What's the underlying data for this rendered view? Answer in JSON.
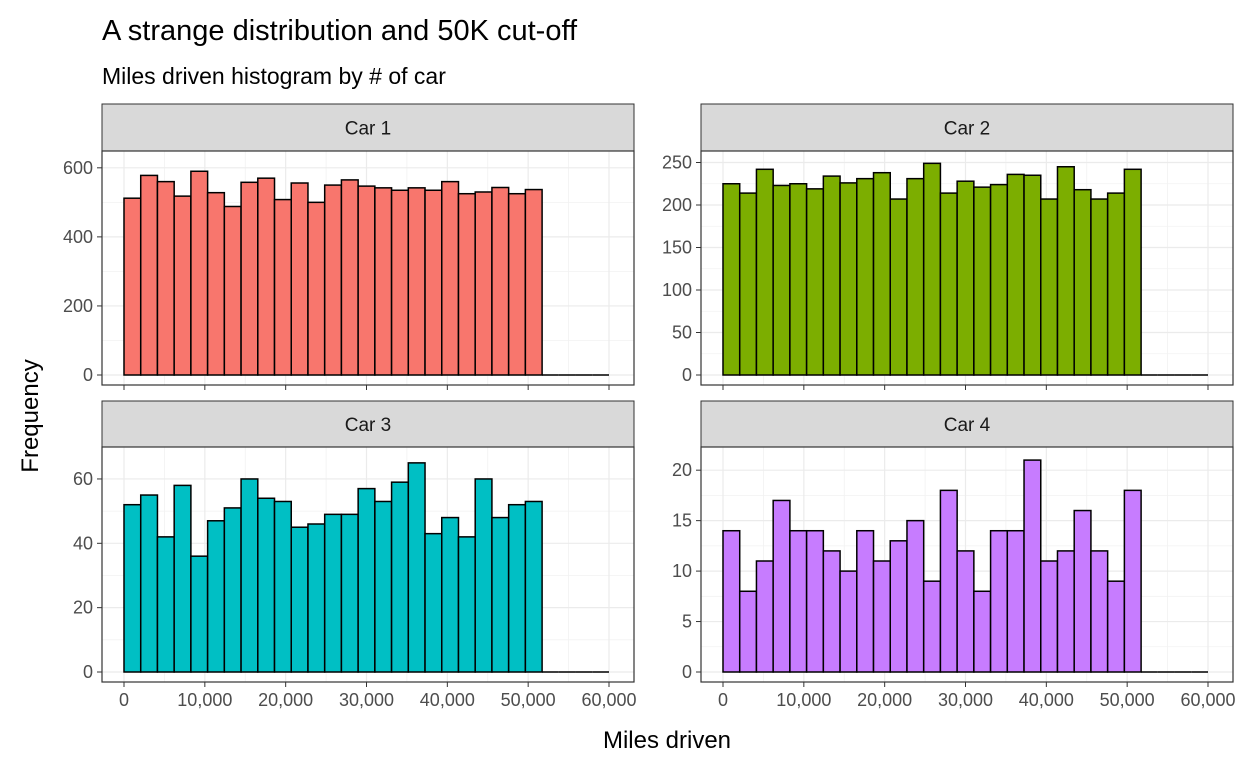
{
  "title": "A strange distribution and 50K cut-off",
  "subtitle": "Miles driven histogram by # of car",
  "chart_data": {
    "type": "bar",
    "title": "A strange distribution and 50K cut-off",
    "subtitle": "Miles driven histogram by # of car",
    "xlabel": "Miles driven",
    "ylabel": "Frequency",
    "xlim": [
      0,
      60000
    ],
    "x_ticks": [
      0,
      10000,
      20000,
      30000,
      40000,
      50000,
      60000
    ],
    "x_tick_labels": [
      "0",
      "10,000",
      "20,000",
      "30,000",
      "40,000",
      "50,000",
      "60,000"
    ],
    "bin_edges": [
      0,
      2069,
      4138,
      6207,
      8276,
      10345,
      12414,
      14483,
      16552,
      18621,
      20690,
      22759,
      24828,
      26897,
      28966,
      31034,
      33103,
      35172,
      37241,
      39310,
      41379,
      43448,
      45517,
      47586,
      49655,
      51724,
      53793,
      55862,
      57931,
      60000
    ],
    "grid": true,
    "legend": "none",
    "panels": [
      {
        "strip": "Car 1",
        "fill": "#F8766D",
        "ylim": [
          0,
          640
        ],
        "y_ticks": [
          0,
          200,
          400,
          600
        ],
        "values": [
          512,
          578,
          560,
          518,
          590,
          528,
          488,
          558,
          570,
          508,
          556,
          500,
          550,
          565,
          547,
          542,
          535,
          542,
          535,
          560,
          525,
          530,
          543,
          525,
          537,
          0,
          0,
          0,
          0
        ]
      },
      {
        "strip": "Car 2",
        "fill": "#7CAE00",
        "ylim": [
          0,
          260
        ],
        "y_ticks": [
          0,
          50,
          100,
          150,
          200,
          250
        ],
        "values": [
          225,
          214,
          242,
          223,
          225,
          219,
          234,
          226,
          231,
          238,
          207,
          231,
          249,
          214,
          228,
          221,
          224,
          236,
          235,
          207,
          245,
          218,
          207,
          214,
          242,
          0,
          0,
          0,
          0
        ]
      },
      {
        "strip": "Car 3",
        "fill": "#00BFC4",
        "ylim": [
          0,
          69
        ],
        "y_ticks": [
          0,
          20,
          40,
          60
        ],
        "values": [
          52,
          55,
          42,
          58,
          36,
          47,
          51,
          60,
          54,
          53,
          45,
          46,
          49,
          49,
          57,
          53,
          59,
          65,
          43,
          48,
          42,
          60,
          48,
          52,
          53,
          0,
          0,
          0,
          0
        ]
      },
      {
        "strip": "Car 4",
        "fill": "#C77CFF",
        "ylim": [
          0,
          22
        ],
        "y_ticks": [
          0,
          5,
          10,
          15,
          20
        ],
        "values": [
          14,
          8,
          11,
          17,
          14,
          14,
          12,
          10,
          14,
          11,
          13,
          15,
          9,
          18,
          12,
          8,
          14,
          14,
          21,
          11,
          12,
          16,
          12,
          9,
          18,
          0,
          0,
          0,
          0
        ]
      }
    ]
  }
}
